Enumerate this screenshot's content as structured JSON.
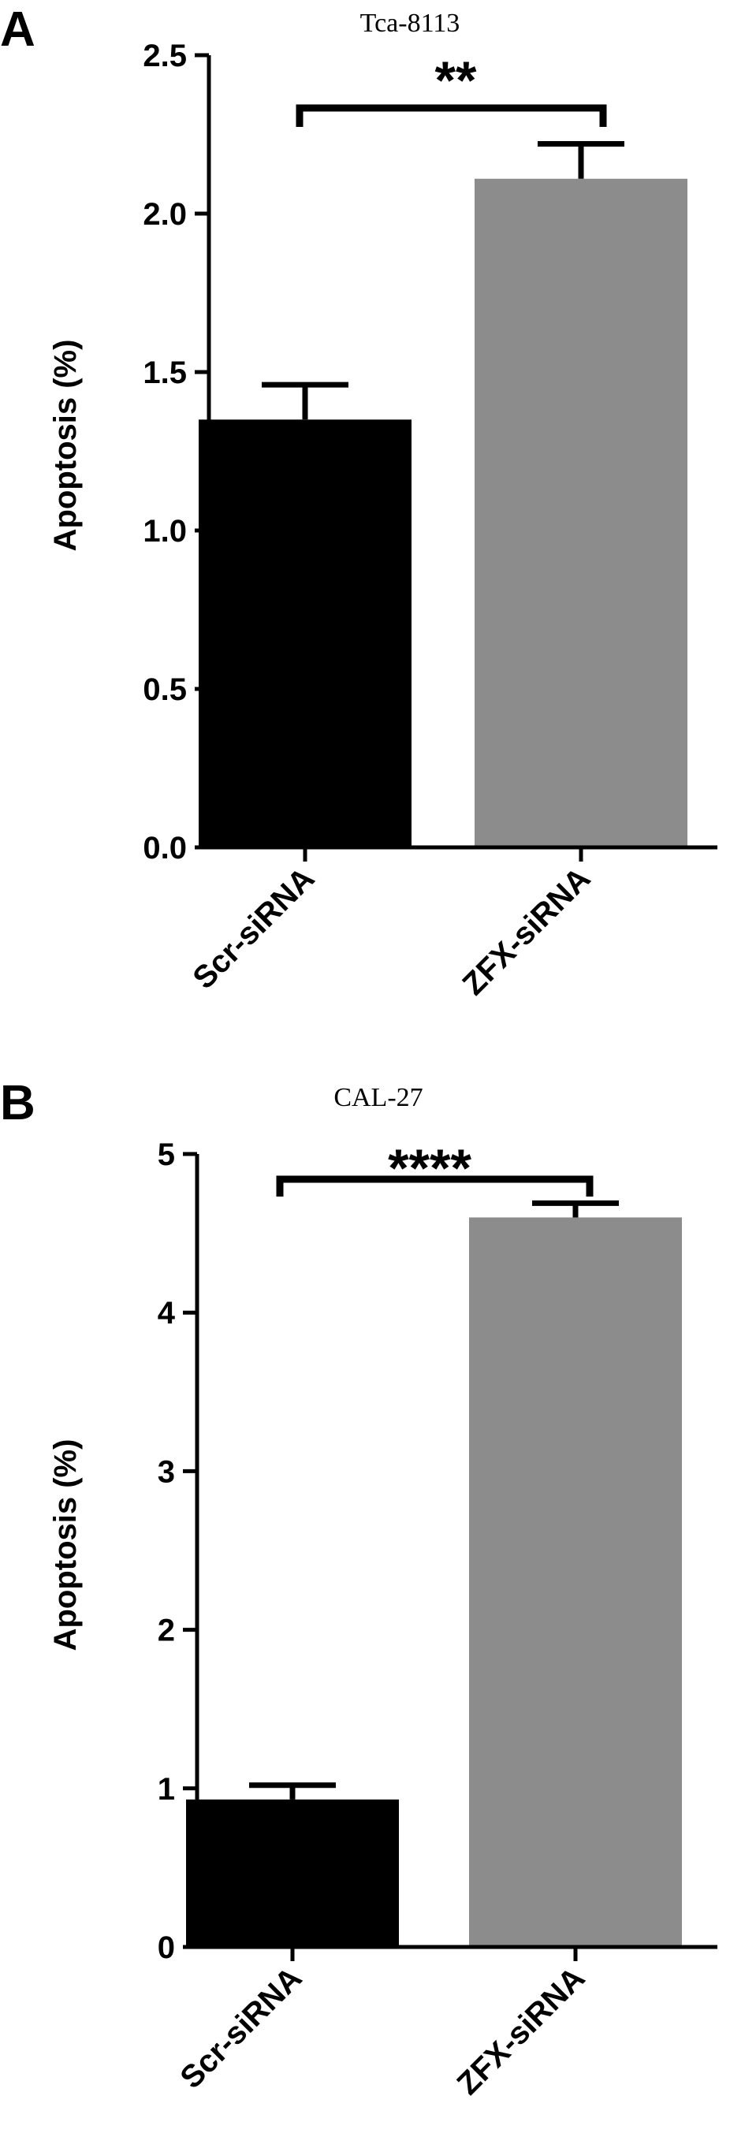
{
  "chart_data": [
    {
      "panel": "A",
      "type": "bar",
      "title": "Tca-8113",
      "ylabel": "Apoptosis (%)",
      "xlabel": "",
      "categories": [
        "Scr-siRNA",
        "ZFX-siRNA"
      ],
      "values": [
        1.35,
        2.11
      ],
      "error": [
        0.11,
        0.11
      ],
      "bar_colors": [
        "#000000",
        "#8c8c8c"
      ],
      "ylim": [
        0,
        2.5
      ],
      "yticks": [
        0.0,
        0.5,
        1.0,
        1.5,
        2.0,
        2.5
      ],
      "ytick_labels": [
        "0.0",
        "0.5",
        "1.0",
        "1.5",
        "2.0",
        "2.5"
      ],
      "significance": "**",
      "grid": false
    },
    {
      "panel": "B",
      "type": "bar",
      "title": "CAL-27",
      "ylabel": "Apoptosis (%)",
      "xlabel": "",
      "categories": [
        "Scr-siRNA",
        "ZFX-siRNA"
      ],
      "values": [
        0.93,
        4.6
      ],
      "error": [
        0.09,
        0.09
      ],
      "bar_colors": [
        "#000000",
        "#8c8c8c"
      ],
      "ylim": [
        0,
        5
      ],
      "yticks": [
        0,
        1,
        2,
        3,
        4,
        5
      ],
      "ytick_labels": [
        "0",
        "1",
        "2",
        "3",
        "4",
        "5"
      ],
      "significance": "****",
      "grid": false
    }
  ]
}
